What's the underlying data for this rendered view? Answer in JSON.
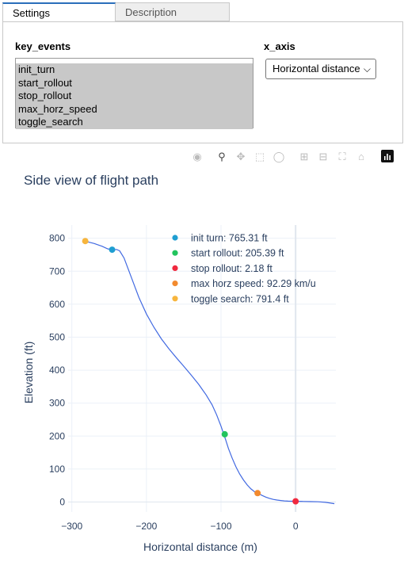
{
  "tabs": [
    {
      "label": "Settings",
      "active": true
    },
    {
      "label": "Description",
      "active": false
    }
  ],
  "settings": {
    "key_events_label": "key_events",
    "key_events_options": [
      "init_turn",
      "start_rollout",
      "stop_rollout",
      "max_horz_speed",
      "toggle_search"
    ],
    "x_axis_label": "x_axis",
    "x_axis_value": "Horizontal distance"
  },
  "modebar": [
    "camera-icon",
    "zoom-icon",
    "pan-icon",
    "box-select-icon",
    "lasso-select-icon",
    "zoom-in-icon",
    "zoom-out-icon",
    "autoscale-icon",
    "reset-axes-icon",
    "plotly-logo"
  ],
  "chart_data": {
    "type": "line",
    "title": "Side view of flight path",
    "xlabel": "Horizontal distance (m)",
    "ylabel": "Elevation (ft)",
    "xlim": [
      -305,
      54
    ],
    "ylim": [
      -30,
      840
    ],
    "xticks": [
      -300,
      -200,
      -100,
      0
    ],
    "xtick_labels": [
      "−300",
      "−200",
      "−100",
      "0"
    ],
    "yticks": [
      0,
      100,
      200,
      300,
      400,
      500,
      600,
      700,
      800
    ],
    "grid": true,
    "line_color": "#4169e1",
    "path": {
      "x": [
        -282,
        -270,
        -260,
        -252,
        -246,
        -240,
        -236,
        -230,
        -225,
        -220,
        -215,
        -210,
        -200,
        -190,
        -180,
        -170,
        -160,
        -150,
        -140,
        -130,
        -120,
        -112,
        -106,
        -100,
        -97,
        -94,
        -90,
        -85,
        -80,
        -75,
        -70,
        -65,
        -60,
        -55,
        -50,
        -45,
        -40,
        -35,
        -30,
        -25,
        -20,
        -15,
        -10,
        -5,
        0,
        10,
        20,
        30,
        40,
        52
      ],
      "y": [
        791,
        784,
        776,
        768,
        765,
        766,
        762,
        740,
        710,
        680,
        650,
        620,
        570,
        530,
        495,
        465,
        438,
        412,
        385,
        357,
        325,
        295,
        265,
        230,
        210,
        190,
        162,
        133,
        107,
        85,
        67,
        52,
        40,
        31,
        26,
        20,
        15,
        11,
        8,
        6,
        4.5,
        3.5,
        2.8,
        2.4,
        2.2,
        1.8,
        1.3,
        0.8,
        -1,
        -5
      ]
    },
    "series": [
      {
        "name": "init turn: 765.31 ft",
        "x": [
          -246
        ],
        "y": [
          765.31
        ],
        "color": "#1f9ed1"
      },
      {
        "name": "start rollout: 205.39 ft",
        "x": [
          -95
        ],
        "y": [
          205.39
        ],
        "color": "#21c45d"
      },
      {
        "name": "stop rollout: 2.18 ft",
        "x": [
          0
        ],
        "y": [
          2.18
        ],
        "color": "#f0293e"
      },
      {
        "name": "max horz speed: 92.29 km/u",
        "x": [
          -51
        ],
        "y": [
          27
        ],
        "color": "#f28a2e"
      },
      {
        "name": "toggle search: 791.4 ft",
        "x": [
          -282
        ],
        "y": [
          791.4
        ],
        "color": "#f7b53d"
      }
    ],
    "legend_position": "top-right"
  }
}
